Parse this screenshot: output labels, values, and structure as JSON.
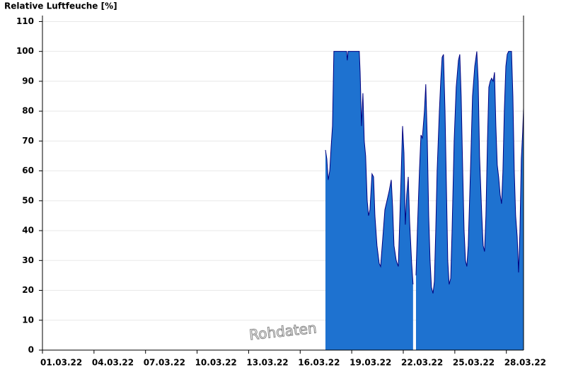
{
  "chart_data": {
    "type": "area",
    "title": "Relative Luftfeuche [%]",
    "annotation": "Rohdaten",
    "x": [
      17.47,
      17.55,
      17.63,
      17.72,
      17.8,
      17.88,
      17.96,
      18.04,
      18.29,
      18.54,
      18.7,
      18.74,
      18.79,
      18.87,
      19.11,
      19.44,
      19.49,
      19.57,
      19.65,
      19.73,
      19.81,
      19.9,
      19.98,
      20.06,
      20.18,
      20.27,
      20.35,
      20.47,
      20.6,
      20.68,
      20.8,
      20.93,
      21.05,
      21.17,
      21.3,
      21.38,
      21.46,
      21.59,
      21.71,
      21.83,
      21.96,
      22.04,
      22.12,
      22.2,
      22.29,
      22.37,
      22.49,
      22.57,
      22.65,
      22.74,
      22.82,
      22.94,
      23.03,
      23.11,
      23.23,
      23.31,
      23.4,
      23.48,
      23.56,
      23.64,
      23.73,
      23.81,
      23.89,
      23.97,
      24.1,
      24.18,
      24.26,
      24.34,
      24.43,
      24.51,
      24.59,
      24.67,
      24.76,
      24.84,
      24.96,
      25.08,
      25.21,
      25.29,
      25.37,
      25.46,
      25.54,
      25.62,
      25.7,
      25.78,
      25.91,
      26.03,
      26.16,
      26.28,
      26.36,
      26.44,
      26.57,
      26.65,
      26.73,
      26.81,
      26.9,
      26.98,
      27.06,
      27.14,
      27.23,
      27.31,
      27.39,
      27.47,
      27.55,
      27.64,
      27.72,
      27.8,
      27.88,
      27.97,
      28.05,
      28.13,
      28.3,
      28.38,
      28.46,
      28.54,
      28.63,
      28.71,
      28.79,
      28.87,
      28.95,
      29.0
    ],
    "series": [
      {
        "name": "Relative Luftfeuche",
        "color": "#1e72d0",
        "line_color": "#000080",
        "values": [
          67,
          64,
          57,
          60,
          68,
          75,
          100,
          100,
          100,
          100,
          100,
          97,
          100,
          100,
          100,
          100,
          93,
          75,
          86,
          70,
          65,
          50,
          45,
          47,
          59,
          58,
          45,
          35,
          29,
          28,
          37,
          47,
          50,
          53,
          57,
          48,
          35,
          30,
          28,
          50,
          75,
          66,
          42,
          52,
          58,
          43,
          29,
          22,
          null,
          25,
          40,
          60,
          72,
          71,
          80,
          89,
          70,
          45,
          30,
          21,
          19,
          23,
          40,
          60,
          80,
          90,
          98,
          99,
          80,
          55,
          30,
          22,
          24,
          40,
          70,
          88,
          97,
          99,
          85,
          60,
          40,
          30,
          28,
          35,
          60,
          85,
          95,
          100,
          90,
          65,
          45,
          35,
          33,
          45,
          70,
          88,
          90,
          91,
          90,
          93,
          75,
          62,
          58,
          52,
          49,
          60,
          80,
          95,
          99,
          100,
          100,
          85,
          60,
          45,
          38,
          26,
          40,
          64,
          73,
          81
        ]
      }
    ],
    "xlim": [
      1,
      29
    ],
    "xticks": [
      {
        "value": 1,
        "label": "01.03.22"
      },
      {
        "value": 4,
        "label": "04.03.22"
      },
      {
        "value": 7,
        "label": "07.03.22"
      },
      {
        "value": 10,
        "label": "10.03.22"
      },
      {
        "value": 13,
        "label": "13.03.22"
      },
      {
        "value": 16,
        "label": "16.03.22"
      },
      {
        "value": 19,
        "label": "19.03.22"
      },
      {
        "value": 22,
        "label": "22.03.22"
      },
      {
        "value": 25,
        "label": "25.03.22"
      },
      {
        "value": 28,
        "label": "28.03.22"
      }
    ],
    "ylim": [
      0,
      112
    ],
    "yticks": [
      0,
      10,
      20,
      30,
      40,
      50,
      60,
      70,
      80,
      90,
      100,
      110
    ],
    "grid": true
  }
}
